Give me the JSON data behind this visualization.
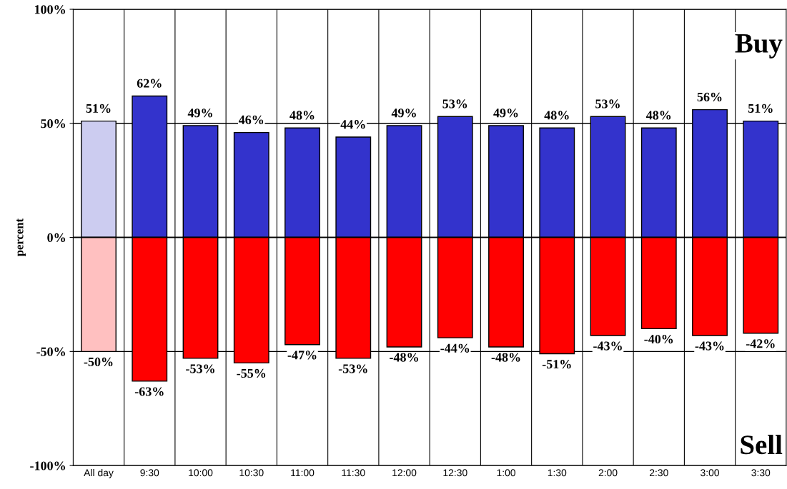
{
  "chart_data": {
    "type": "bar",
    "stacked": true,
    "ylabel": "percent",
    "categories": [
      "All day",
      "9:30",
      "10:00",
      "10:30",
      "11:00",
      "11:30",
      "12:00",
      "12:30",
      "1:00",
      "1:30",
      "2:00",
      "2:30",
      "3:00",
      "3:30"
    ],
    "series": [
      {
        "colors": [
          "#ccccf0",
          "#3333cc",
          "#3333cc",
          "#3333cc",
          "#3333cc",
          "#3333cc",
          "#3333cc",
          "#3333cc",
          "#3333cc",
          "#3333cc",
          "#3333cc",
          "#3333cc",
          "#3333cc",
          "#3333cc"
        ],
        "values": [
          51,
          62,
          49,
          46,
          48,
          44,
          49,
          53,
          49,
          48,
          53,
          48,
          56,
          51
        ],
        "value_labels": [
          "51%",
          "62%",
          "49%",
          "46%",
          "48%",
          "44%",
          "49%",
          "53%",
          "49%",
          "48%",
          "53%",
          "48%",
          "56%",
          "51%"
        ]
      },
      {
        "colors": [
          "#ffc0c0",
          "#ff0000",
          "#ff0000",
          "#ff0000",
          "#ff0000",
          "#ff0000",
          "#ff0000",
          "#ff0000",
          "#ff0000",
          "#ff0000",
          "#ff0000",
          "#ff0000",
          "#ff0000",
          "#ff0000"
        ],
        "values": [
          -50,
          -63,
          -53,
          -55,
          -47,
          -53,
          -48,
          -44,
          -48,
          -51,
          -43,
          -40,
          -43,
          -42
        ],
        "value_labels": [
          "-50%",
          "-63%",
          "-53%",
          "-55%",
          "-47%",
          "-53%",
          "-48%",
          "-44%",
          "-48%",
          "-51%",
          "-43%",
          "-40%",
          "-43%",
          "-42%"
        ]
      }
    ],
    "ylim": [
      -100,
      100
    ],
    "yticks": [
      {
        "value": -100,
        "label": "-100%"
      },
      {
        "value": -50,
        "label": "-50%"
      },
      {
        "value": 0,
        "label": "0%"
      },
      {
        "value": 50,
        "label": "50%"
      },
      {
        "value": 100,
        "label": "100%"
      }
    ],
    "grid": true,
    "legend": false,
    "annotations": [
      "Buy",
      "Sell"
    ]
  }
}
